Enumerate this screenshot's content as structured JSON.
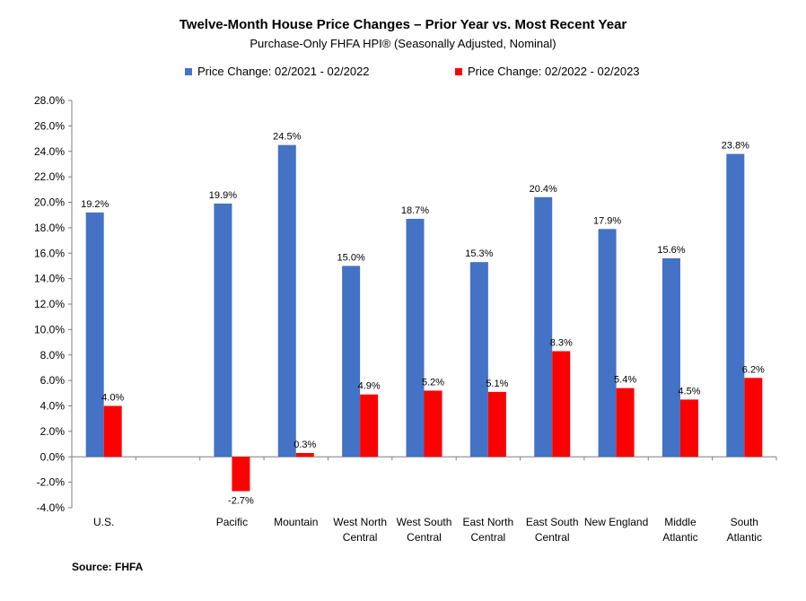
{
  "chart_data": {
    "type": "bar",
    "title": "Twelve-Month House Price Changes – Prior Year vs. Most Recent Year",
    "subtitle": "Purchase-Only FHFA HPI® (Seasonally Adjusted, Nominal)",
    "categories": [
      [
        "U.S."
      ],
      [
        ""
      ],
      [
        "Pacific"
      ],
      [
        "Mountain"
      ],
      [
        "West North",
        "Central"
      ],
      [
        "West South",
        "Central"
      ],
      [
        "East North",
        "Central"
      ],
      [
        "East South",
        "Central"
      ],
      [
        "New England"
      ],
      [
        "Middle",
        "Atlantic"
      ],
      [
        "South",
        "Atlantic"
      ]
    ],
    "series": [
      {
        "name": "Price Change:  02/2021 - 02/2022",
        "color": "#4472C4",
        "values": [
          19.2,
          null,
          19.9,
          24.5,
          15.0,
          18.7,
          15.3,
          20.4,
          17.9,
          15.6,
          23.8
        ],
        "labels": [
          "19.2%",
          "",
          "19.9%",
          "24.5%",
          "15.0%",
          "18.7%",
          "15.3%",
          "20.4%",
          "17.9%",
          "15.6%",
          "23.8%"
        ]
      },
      {
        "name": "Price Change:  02/2022 - 02/2023",
        "color": "#FF0000",
        "values": [
          4.0,
          null,
          -2.7,
          0.3,
          4.9,
          5.2,
          5.1,
          8.3,
          5.4,
          4.5,
          6.2
        ],
        "labels": [
          "4.0%",
          "",
          "-2.7%",
          "0.3%",
          "4.9%",
          "5.2%",
          "5.1%",
          "8.3%",
          "5.4%",
          "4.5%",
          "6.2%"
        ]
      }
    ],
    "ylim": [
      -4.0,
      28.0
    ],
    "yticks": [
      "-4.0%",
      "-2.0%",
      "0.0%",
      "2.0%",
      "4.0%",
      "6.0%",
      "8.0%",
      "10.0%",
      "12.0%",
      "14.0%",
      "16.0%",
      "18.0%",
      "20.0%",
      "22.0%",
      "24.0%",
      "26.0%",
      "28.0%"
    ],
    "ytick_values": [
      -4,
      -2,
      0,
      2,
      4,
      6,
      8,
      10,
      12,
      14,
      16,
      18,
      20,
      22,
      24,
      26,
      28
    ],
    "grid": false,
    "legend_position": "top-center",
    "xlabel": "",
    "ylabel": ""
  },
  "footer": {
    "source": "Source: FHFA"
  }
}
